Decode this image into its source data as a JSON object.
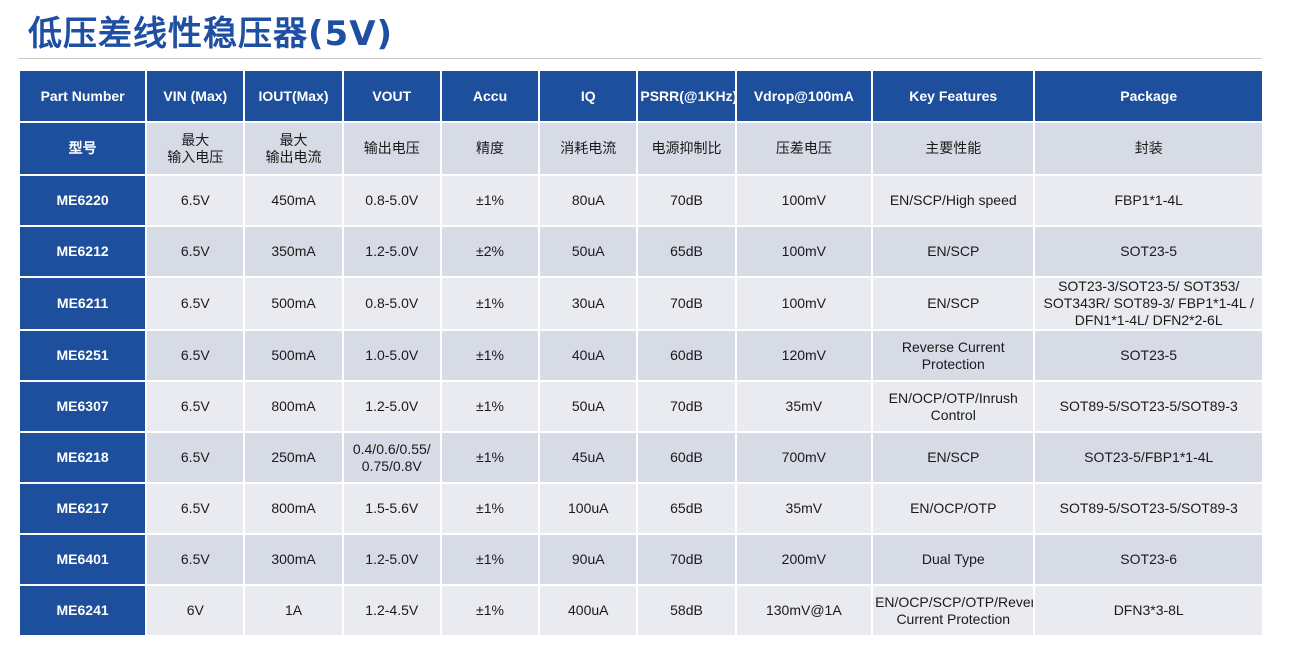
{
  "title": "低压差线性稳压器(5V)",
  "columns": [
    "Part Number",
    "VIN (Max)",
    "IOUT(Max)",
    "VOUT",
    "Accu",
    "IQ",
    "PSRR(@1KHz)",
    "Vdrop@100mA",
    "Key Features",
    "Package"
  ],
  "columns_cn": [
    "型号",
    "最大\n输入电压",
    "最大\n输出电流",
    "输出电压",
    "精度",
    "消耗电流",
    "电源抑制比",
    "压差电压",
    "主要性能",
    "封装"
  ],
  "rows": [
    [
      "ME6220",
      "6.5V",
      "450mA",
      "0.8-5.0V",
      "±1%",
      "80uA",
      "70dB",
      "100mV",
      "EN/SCP/High speed",
      "FBP1*1-4L"
    ],
    [
      "ME6212",
      "6.5V",
      "350mA",
      "1.2-5.0V",
      "±2%",
      "50uA",
      "65dB",
      "100mV",
      "EN/SCP",
      "SOT23-5"
    ],
    [
      "ME6211",
      "6.5V",
      "500mA",
      "0.8-5.0V",
      "±1%",
      "30uA",
      "70dB",
      "100mV",
      "EN/SCP",
      "SOT23-3/SOT23-5/ SOT353/ SOT343R/ SOT89-3/ FBP1*1-4L / DFN1*1-4L/ DFN2*2-6L"
    ],
    [
      "ME6251",
      "6.5V",
      "500mA",
      "1.0-5.0V",
      "±1%",
      "40uA",
      "60dB",
      "120mV",
      "Reverse Current Protection",
      "SOT23-5"
    ],
    [
      "ME6307",
      "6.5V",
      "800mA",
      "1.2-5.0V",
      "±1%",
      "50uA",
      "70dB",
      "35mV",
      "EN/OCP/OTP/Inrush Control",
      "SOT89-5/SOT23-5/SOT89-3"
    ],
    [
      "ME6218",
      "6.5V",
      "250mA",
      "0.4/0.6/0.55/ 0.75/0.8V",
      "±1%",
      "45uA",
      "60dB",
      "700mV",
      "EN/SCP",
      "SOT23-5/FBP1*1-4L"
    ],
    [
      "ME6217",
      "6.5V",
      "800mA",
      "1.5-5.6V",
      "±1%",
      "100uA",
      "65dB",
      "35mV",
      "EN/OCP/OTP",
      "SOT89-5/SOT23-5/SOT89-3"
    ],
    [
      "ME6401",
      "6.5V",
      "300mA",
      "1.2-5.0V",
      "±1%",
      "90uA",
      "70dB",
      "200mV",
      "Dual Type",
      "SOT23-6"
    ],
    [
      "ME6241",
      "6V",
      "1A",
      "1.2-4.5V",
      "±1%",
      "400uA",
      "58dB",
      "130mV@1A",
      "EN/OCP/SCP/OTP/Reverse Current Protection",
      "DFN3*3-8L"
    ]
  ]
}
